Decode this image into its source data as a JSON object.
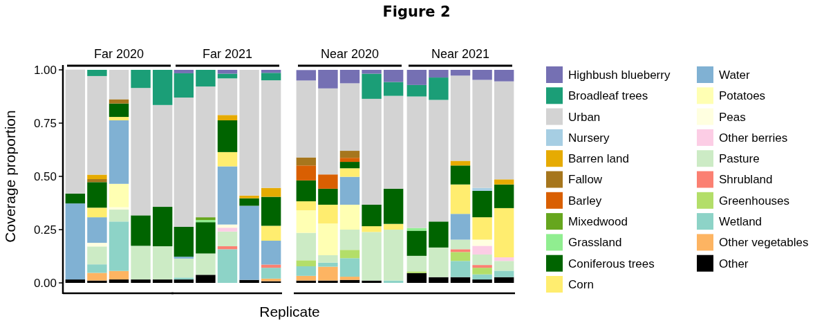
{
  "chart_data": {
    "type": "bar",
    "stacked": true,
    "title": "Figure 2",
    "annotations": [
      "Far 2020",
      "Far 2021",
      "Near 2020",
      "Near 2021"
    ],
    "xlabel": "Replicate",
    "ylabel": "Coverage proportion",
    "categories": [
      null,
      null,
      null,
      null,
      null,
      null,
      null,
      null,
      null,
      null,
      null,
      null,
      null,
      null,
      null,
      null,
      null,
      null,
      null,
      null
    ],
    "ylim": [
      0,
      1
    ],
    "yticks": [
      {
        "value": 0,
        "label": "0.00"
      },
      {
        "value": 0.25,
        "label": "0.25"
      },
      {
        "value": 0.5,
        "label": "0.50"
      },
      {
        "value": 0.75,
        "label": "0.75"
      },
      {
        "value": 1,
        "label": "1.00"
      }
    ],
    "legend": "right",
    "series": [
      {
        "name": "Other",
        "color": "#000000",
        "values": [
          0.016,
          0.011,
          0.016,
          0.016,
          0.016,
          0.016,
          0.038,
          null,
          0.014,
          0.008,
          0.011,
          0.011,
          0.014,
          0.011,
          null,
          0.046,
          0.027,
          0.027,
          0.016,
          0.027
        ]
      },
      {
        "name": "Other vegetables",
        "color": "#fdb462",
        "values": [
          null,
          0.036,
          0.04,
          null,
          null,
          null,
          null,
          null,
          null,
          0.012,
          0.022,
          0.065,
          0.015,
          null,
          null,
          null,
          null,
          null,
          null,
          null
        ]
      },
      {
        "name": "Wetland",
        "color": "#8dd3c7",
        "values": [
          null,
          0.04,
          0.232,
          null,
          null,
          0.009,
          null,
          0.158,
          null,
          0.051,
          0.045,
          0.019,
          0.087,
          null,
          0.011,
          null,
          null,
          0.076,
          0.024,
          0.03
        ]
      },
      {
        "name": "Greenhouses",
        "color": "#b3de69",
        "values": [
          null,
          null,
          null,
          null,
          null,
          null,
          null,
          null,
          null,
          null,
          0.028,
          null,
          0.039,
          null,
          null,
          0.008,
          null,
          0.042,
          0.031,
          null
        ]
      },
      {
        "name": "Shrubland",
        "color": "#fb8072",
        "values": [
          null,
          null,
          null,
          null,
          null,
          null,
          null,
          0.014,
          null,
          0.015,
          null,
          null,
          null,
          null,
          null,
          null,
          null,
          0.013,
          0.013,
          null
        ]
      },
      {
        "name": "Pasture",
        "color": "#ccebc5",
        "values": [
          null,
          0.084,
          0.056,
          0.158,
          0.156,
          0.089,
          0.1,
          0.069,
          null,
          null,
          0.129,
          0.035,
          0.095,
          0.228,
          0.239,
          0.073,
          0.139,
          0.045,
          0.049,
          0.046
        ]
      },
      {
        "name": "Other berries",
        "color": "#fccde5",
        "values": [
          null,
          null,
          null,
          null,
          null,
          null,
          null,
          0.018,
          null,
          null,
          null,
          null,
          null,
          null,
          null,
          null,
          null,
          null,
          0.041,
          0.017
        ]
      },
      {
        "name": "Peas",
        "color": "#ffffe0",
        "values": [
          null,
          0.017,
          0.011,
          null,
          null,
          null,
          null,
          0.015,
          null,
          null,
          null,
          null,
          null,
          null,
          null,
          null,
          null,
          null,
          0.029,
          null
        ]
      },
      {
        "name": "Potatoes",
        "color": "#ffffb3",
        "values": [
          null,
          null,
          0.11,
          null,
          null,
          null,
          null,
          null,
          null,
          null,
          0.106,
          0.149,
          0.117,
          null,
          null,
          null,
          null,
          null,
          null,
          null
        ]
      },
      {
        "name": "Water",
        "color": "#80b1d3",
        "values": [
          0.357,
          0.12,
          0.298,
          null,
          null,
          0.009,
          null,
          0.273,
          0.348,
          0.112,
          null,
          null,
          0.131,
          null,
          null,
          null,
          null,
          0.121,
          null,
          null
        ]
      },
      {
        "name": "Corn",
        "color": "#ffed6f",
        "values": [
          null,
          0.045,
          0.016,
          null,
          null,
          null,
          null,
          0.067,
          null,
          0.07,
          0.042,
          0.088,
          0.04,
          0.027,
          0.027,
          null,
          null,
          0.138,
          0.105,
          0.231
        ]
      },
      {
        "name": "Coniferous trees",
        "color": "#006400",
        "values": [
          0.046,
          0.12,
          0.063,
          0.143,
          0.185,
          0.14,
          0.147,
          0.149,
          0.035,
          0.136,
          0.098,
          0.075,
          0.03,
          0.101,
          0.165,
          0.118,
          0.122,
          0.089,
          0.124,
          0.111
        ]
      },
      {
        "name": "Grassland",
        "color": "#90ee90",
        "values": [
          null,
          null,
          null,
          null,
          null,
          null,
          0.01,
          null,
          null,
          null,
          null,
          null,
          null,
          null,
          null,
          0.013,
          null,
          null,
          null,
          null
        ]
      },
      {
        "name": "Mixedwood",
        "color": "#66a61e",
        "values": [
          null,
          null,
          null,
          null,
          null,
          null,
          0.013,
          null,
          null,
          null,
          null,
          null,
          null,
          null,
          null,
          null,
          null,
          null,
          null,
          null
        ]
      },
      {
        "name": "Barley",
        "color": "#d95f02",
        "values": [
          null,
          null,
          null,
          null,
          null,
          null,
          null,
          null,
          null,
          null,
          0.07,
          0.067,
          0.019,
          null,
          null,
          null,
          null,
          null,
          null,
          null
        ]
      },
      {
        "name": "Fallow",
        "color": "#a6761d",
        "values": [
          null,
          0.014,
          0.02,
          null,
          null,
          null,
          null,
          null,
          null,
          null,
          0.038,
          null,
          0.033,
          null,
          null,
          null,
          null,
          null,
          null,
          null
        ]
      },
      {
        "name": "Barren land",
        "color": "#e6ab02",
        "values": [
          null,
          0.021,
          null,
          null,
          null,
          null,
          null,
          0.025,
          0.013,
          0.042,
          null,
          null,
          null,
          null,
          null,
          null,
          null,
          0.022,
          null,
          0.024
        ]
      },
      {
        "name": "Nursery",
        "color": "#a6cee3",
        "values": [
          null,
          null,
          null,
          null,
          null,
          null,
          null,
          null,
          null,
          null,
          null,
          null,
          null,
          null,
          null,
          null,
          null,
          null,
          0.014,
          null
        ]
      },
      {
        "name": "Urban",
        "color": "#d3d3d3",
        "values": [
          0.582,
          0.463,
          0.138,
          0.598,
          0.478,
          0.607,
          0.614,
          0.172,
          0.59,
          0.505,
          0.361,
          0.404,
          0.317,
          0.497,
          0.436,
          0.617,
          0.571,
          0.4,
          0.507,
          0.46
        ]
      },
      {
        "name": "Broadleaf trees",
        "color": "#1b9e77",
        "values": [
          null,
          0.029,
          null,
          0.085,
          0.165,
          0.114,
          0.078,
          0.022,
          null,
          0.035,
          null,
          null,
          null,
          0.118,
          0.065,
          0.054,
          0.105,
          null,
          null,
          null
        ]
      },
      {
        "name": "Highbush blueberry",
        "color": "#7570b3",
        "values": [
          null,
          null,
          null,
          null,
          null,
          0.016,
          null,
          0.018,
          null,
          0.014,
          0.049,
          0.087,
          0.063,
          0.018,
          0.057,
          0.071,
          0.036,
          0.027,
          0.047,
          0.054
        ]
      }
    ]
  }
}
